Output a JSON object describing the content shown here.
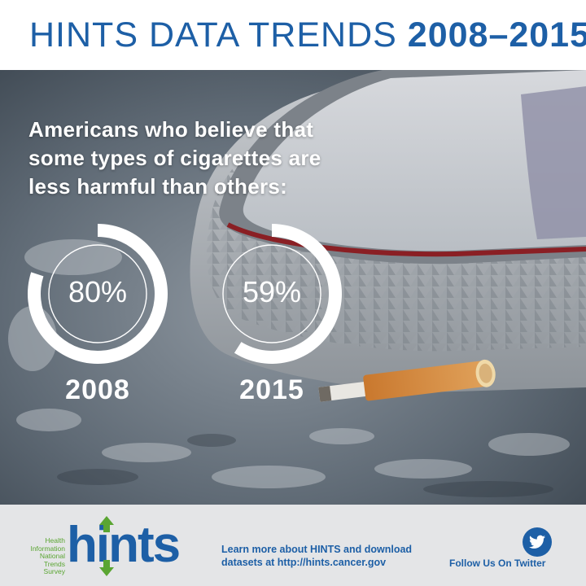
{
  "header": {
    "title_light": "HINTS DATA TRENDS ",
    "title_bold": "2008–2015"
  },
  "headline": {
    "lines": [
      "Americans who believe that",
      "some types of cigarettes are",
      "less harmful than others:"
    ]
  },
  "chart_data": {
    "type": "pie",
    "categories": [
      "2008",
      "2015"
    ],
    "values": [
      80,
      59
    ],
    "unit": "%",
    "value_labels": [
      "80%",
      "59%"
    ]
  },
  "footer": {
    "logo_word": "hints",
    "logo_tagline": [
      "Health",
      "Information",
      "National",
      "Trends",
      "Survey"
    ],
    "learn_lines": [
      "Learn more about HINTS and download",
      "datasets at http://hints.cancer.gov"
    ],
    "follow_label": "Follow Us On Twitter",
    "twitter_icon": "twitter-bird-icon"
  },
  "colors": {
    "brand_blue": "#1d5fa6",
    "brand_green": "#5aa532",
    "donut_fill": "#ffffff",
    "footer_bg": "#e4e5e7"
  }
}
